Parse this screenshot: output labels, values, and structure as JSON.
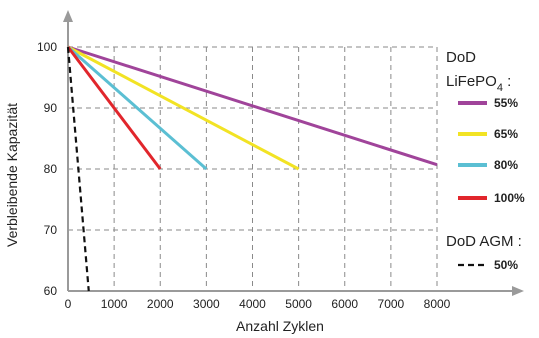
{
  "chart_data": {
    "type": "line",
    "xlabel": "Anzahl Zyklen",
    "ylabel": "Verbleibende Kapazität",
    "xlim": [
      0,
      8000
    ],
    "ylim": [
      60,
      100
    ],
    "x_ticks": [
      "0",
      "1000",
      "2000",
      "3000",
      "4000",
      "5000",
      "6000",
      "7000",
      "8000"
    ],
    "y_ticks": [
      "60",
      "70",
      "80",
      "90",
      "100"
    ],
    "grid": true,
    "legend_position": "right",
    "legend_groups": [
      {
        "title": "DoD",
        "title_line2": "LiFePO",
        "title_sub": "4",
        "title_suffix": ":"
      },
      {
        "title": "DoD AGM :"
      }
    ],
    "series": [
      {
        "name": "55%",
        "group": 0,
        "color": "#a0449a",
        "dash": false,
        "x": [
          0,
          8000
        ],
        "y": [
          100,
          80.7
        ]
      },
      {
        "name": "65%",
        "group": 0,
        "color": "#f2e324",
        "dash": false,
        "x": [
          0,
          5000
        ],
        "y": [
          100,
          80
        ]
      },
      {
        "name": "80%",
        "group": 0,
        "color": "#5bbfd3",
        "dash": false,
        "x": [
          0,
          3000
        ],
        "y": [
          100,
          80
        ]
      },
      {
        "name": "100%",
        "group": 0,
        "color": "#e1262c",
        "dash": false,
        "x": [
          0,
          2000
        ],
        "y": [
          100,
          80
        ]
      },
      {
        "name": "50%",
        "group": 1,
        "color": "#111111",
        "dash": true,
        "x": [
          0,
          450
        ],
        "y": [
          100,
          60
        ]
      }
    ]
  }
}
